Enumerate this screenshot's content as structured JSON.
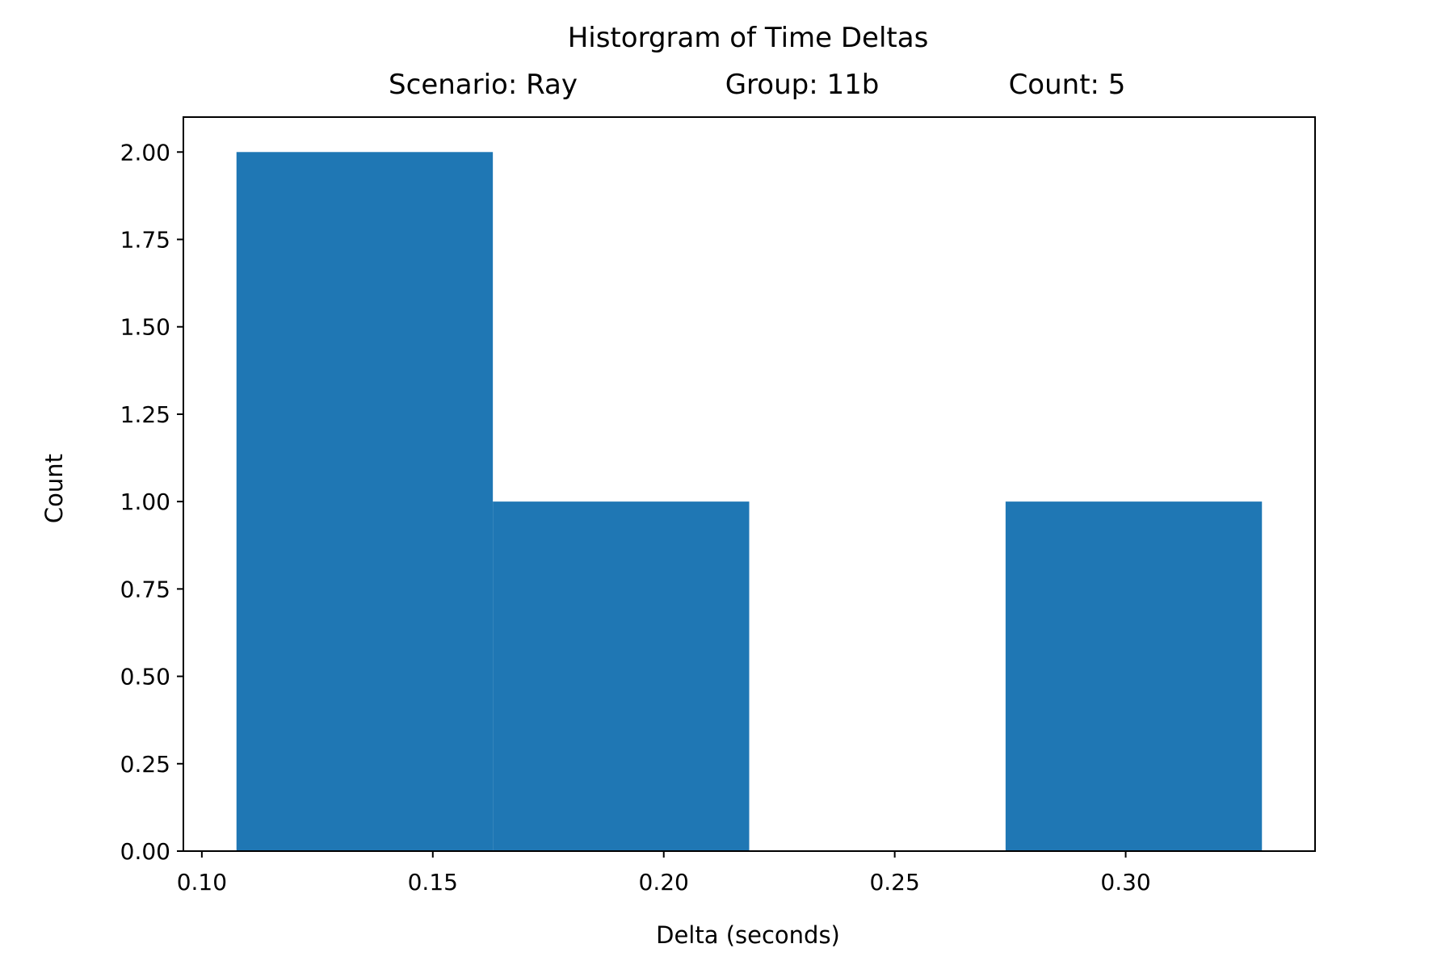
{
  "chart_data": {
    "type": "bar",
    "title": "Historgram of Time Deltas",
    "subtitle": {
      "scenario": "Scenario: Ray",
      "group": "Group: 11b",
      "count": "Count: 5"
    },
    "xlabel": "Delta (seconds)",
    "ylabel": "Count",
    "xlim": [
      0.096,
      0.341
    ],
    "ylim": [
      0,
      2.1
    ],
    "x_ticks": [
      0.1,
      0.15,
      0.2,
      0.25,
      0.3
    ],
    "x_tick_labels": [
      "0.10",
      "0.15",
      "0.20",
      "0.25",
      "0.30"
    ],
    "y_ticks": [
      0,
      0.25,
      0.5,
      0.75,
      1.0,
      1.25,
      1.5,
      1.75,
      2.0
    ],
    "y_tick_labels": [
      "0.00",
      "0.25",
      "0.50",
      "0.75",
      "1.00",
      "1.25",
      "1.50",
      "1.75",
      "2.00"
    ],
    "bins": [
      {
        "x0": 0.1075,
        "x1": 0.163,
        "value": 2
      },
      {
        "x0": 0.163,
        "x1": 0.2185,
        "value": 1
      },
      {
        "x0": 0.2185,
        "x1": 0.274,
        "value": 0
      },
      {
        "x0": 0.274,
        "x1": 0.3295,
        "value": 1
      }
    ],
    "bar_color": "#1f77b4",
    "grid": false,
    "legend": "none"
  }
}
